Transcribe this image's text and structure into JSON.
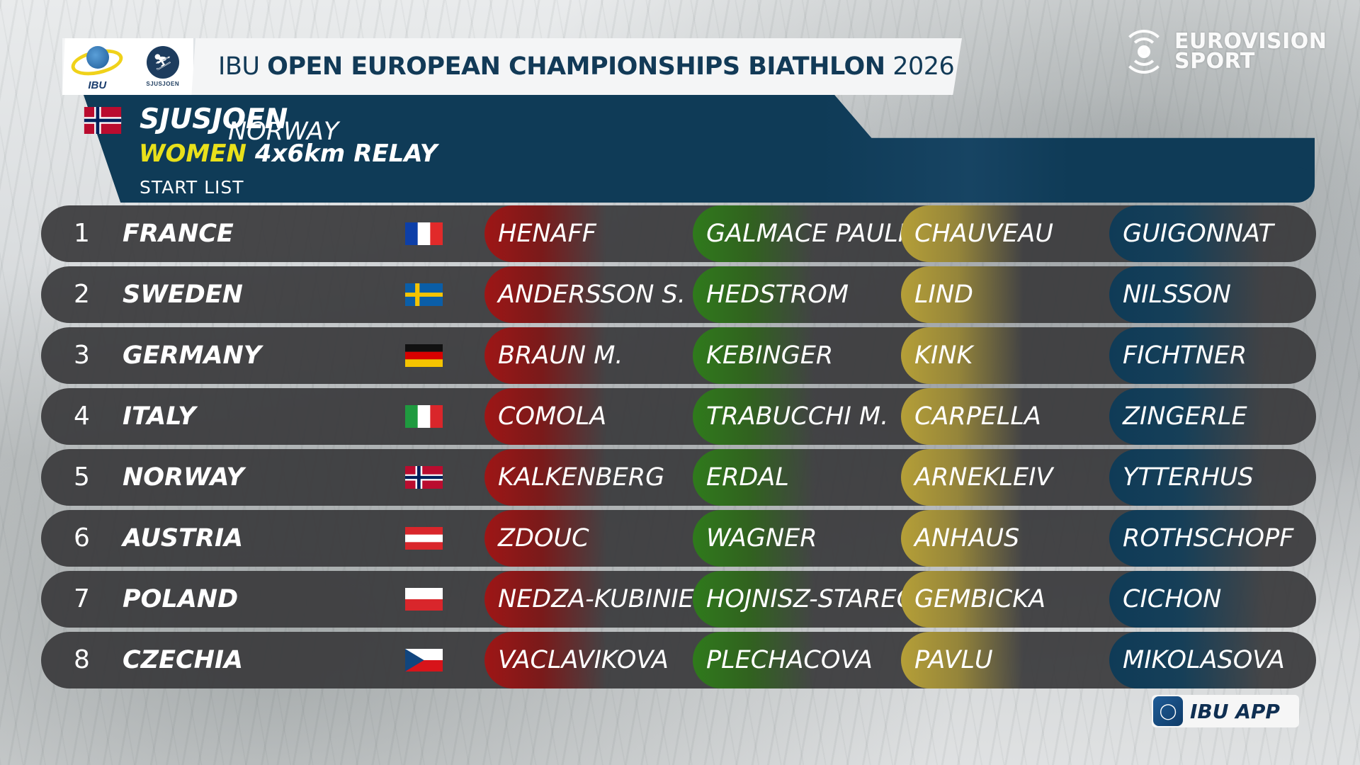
{
  "header": {
    "title_prefix": "IBU",
    "title_bold": "OPEN EUROPEAN CHAMPIONSHIPS BIATHLON",
    "title_year": "2026",
    "logo_ibu_text": "IBU",
    "logo_venue_text": "SJUSJOEN"
  },
  "event": {
    "city": "SJUSJOEN",
    "country": "NORWAY",
    "category": "WOMEN",
    "distance": "4x6km",
    "format": "RELAY",
    "list_type": "START  LIST",
    "host_flag": "norway"
  },
  "broadcaster": {
    "line1": "EUROVISION",
    "line2": "SPORT"
  },
  "app_badge": {
    "label": "IBU APP"
  },
  "colors": {
    "panel": "#0f3b57",
    "accent_yellow": "#e9e01b",
    "leg1": "#9e1616",
    "leg2": "#2f7a1c",
    "leg3": "#b59f38",
    "leg4": "#0f3b57"
  },
  "teams": [
    {
      "rank": "1",
      "country": "FRANCE",
      "flag": "france",
      "legs": [
        "HENAFF",
        "GALMACE  PAULIN",
        "CHAUVEAU",
        "GUIGONNAT"
      ]
    },
    {
      "rank": "2",
      "country": "SWEDEN",
      "flag": "sweden",
      "legs": [
        "ANDERSSON  S.",
        "HEDSTROM",
        "LIND",
        "NILSSON"
      ]
    },
    {
      "rank": "3",
      "country": "GERMANY",
      "flag": "germany",
      "legs": [
        "BRAUN  M.",
        "KEBINGER",
        "KINK",
        "FICHTNER"
      ]
    },
    {
      "rank": "4",
      "country": "ITALY",
      "flag": "italy",
      "legs": [
        "COMOLA",
        "TRABUCCHI  M.",
        "CARPELLA",
        "ZINGERLE"
      ]
    },
    {
      "rank": "5",
      "country": "NORWAY",
      "flag": "norway",
      "legs": [
        "KALKENBERG",
        "ERDAL",
        "ARNEKLEIV",
        "YTTERHUS"
      ]
    },
    {
      "rank": "6",
      "country": "AUSTRIA",
      "flag": "austria",
      "legs": [
        "ZDOUC",
        "WAGNER",
        "ANHAUS",
        "ROTHSCHOPF"
      ]
    },
    {
      "rank": "7",
      "country": "POLAND",
      "flag": "poland",
      "legs": [
        "NEDZA-KUBINIEC",
        "HOJNISZ-STAREGA",
        "GEMBICKA",
        "CICHON"
      ]
    },
    {
      "rank": "8",
      "country": "CZECHIA",
      "flag": "czechia",
      "legs": [
        "VACLAVIKOVA",
        "PLECHACOVA",
        "PAVLU",
        "MIKOLASOVA"
      ]
    }
  ]
}
